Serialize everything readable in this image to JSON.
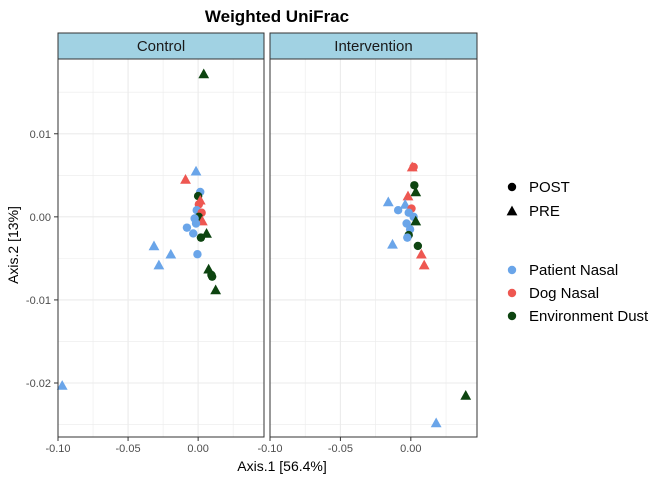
{
  "chart_data": {
    "type": "scatter",
    "title": "Weighted UniFrac",
    "xlabel": "Axis.1   [56.4%]",
    "ylabel": "Axis.2   [13%]",
    "xlim": [
      -0.1,
      0.047
    ],
    "ylim": [
      -0.0265,
      0.019
    ],
    "x_ticks": [
      -0.1,
      -0.05,
      0,
      0.05
    ],
    "x_tick_labels": [
      "-0.10",
      "-0.05",
      "0.00",
      "0.05"
    ],
    "y_ticks": [
      -0.02,
      -0.01,
      0,
      0.01
    ],
    "y_tick_labels": [
      "-0.02",
      "-0.01",
      "0.00",
      "0.01"
    ],
    "grid": true,
    "legend_position": "right",
    "panels": [
      {
        "name": "Control",
        "points": [
          {
            "x": 0.004,
            "y": 0.0172,
            "shape": "triangle",
            "group": "env"
          },
          {
            "x": -0.0015,
            "y": 0.0055,
            "shape": "triangle",
            "group": "patient"
          },
          {
            "x": -0.009,
            "y": 0.0045,
            "shape": "triangle",
            "group": "dog"
          },
          {
            "x": 0.0015,
            "y": 0.003,
            "shape": "circle",
            "group": "patient"
          },
          {
            "x": 0.0,
            "y": 0.0025,
            "shape": "circle",
            "group": "env"
          },
          {
            "x": 0.0015,
            "y": 0.002,
            "shape": "triangle",
            "group": "dog"
          },
          {
            "x": 0.0005,
            "y": 0.0015,
            "shape": "circle",
            "group": "dog"
          },
          {
            "x": -0.001,
            "y": 0.0008,
            "shape": "circle",
            "group": "patient"
          },
          {
            "x": 0.0025,
            "y": 0.0005,
            "shape": "circle",
            "group": "dog"
          },
          {
            "x": 0.0005,
            "y": 0.0,
            "shape": "circle",
            "group": "env"
          },
          {
            "x": -0.0025,
            "y": -0.0002,
            "shape": "circle",
            "group": "patient"
          },
          {
            "x": 0.003,
            "y": -0.0005,
            "shape": "triangle",
            "group": "dog"
          },
          {
            "x": -0.0015,
            "y": -0.0008,
            "shape": "circle",
            "group": "patient"
          },
          {
            "x": -0.008,
            "y": -0.0013,
            "shape": "circle",
            "group": "patient"
          },
          {
            "x": -0.0035,
            "y": -0.002,
            "shape": "circle",
            "group": "patient"
          },
          {
            "x": 0.006,
            "y": -0.002,
            "shape": "triangle",
            "group": "env"
          },
          {
            "x": 0.002,
            "y": -0.0025,
            "shape": "circle",
            "group": "env"
          },
          {
            "x": -0.0315,
            "y": -0.0035,
            "shape": "triangle",
            "group": "patient"
          },
          {
            "x": -0.0005,
            "y": -0.0045,
            "shape": "circle",
            "group": "patient"
          },
          {
            "x": -0.0195,
            "y": -0.0045,
            "shape": "triangle",
            "group": "patient"
          },
          {
            "x": -0.028,
            "y": -0.0058,
            "shape": "triangle",
            "group": "patient"
          },
          {
            "x": 0.0075,
            "y": -0.0063,
            "shape": "triangle",
            "group": "env"
          },
          {
            "x": 0.0095,
            "y": -0.007,
            "shape": "circle",
            "group": "env"
          },
          {
            "x": 0.01,
            "y": -0.0072,
            "shape": "circle",
            "group": "env"
          },
          {
            "x": 0.0125,
            "y": -0.0088,
            "shape": "triangle",
            "group": "env"
          },
          {
            "x": -0.097,
            "y": -0.0203,
            "shape": "triangle",
            "group": "patient"
          }
        ]
      },
      {
        "name": "Intervention",
        "points": [
          {
            "x": 0.001,
            "y": 0.006,
            "shape": "triangle",
            "group": "dog"
          },
          {
            "x": 0.002,
            "y": 0.006,
            "shape": "circle",
            "group": "dog"
          },
          {
            "x": 0.0025,
            "y": 0.0038,
            "shape": "circle",
            "group": "env"
          },
          {
            "x": 0.0035,
            "y": 0.003,
            "shape": "triangle",
            "group": "env"
          },
          {
            "x": -0.002,
            "y": 0.0025,
            "shape": "triangle",
            "group": "dog"
          },
          {
            "x": -0.016,
            "y": 0.0018,
            "shape": "triangle",
            "group": "patient"
          },
          {
            "x": -0.004,
            "y": 0.0015,
            "shape": "triangle",
            "group": "patient"
          },
          {
            "x": 0.0005,
            "y": 0.001,
            "shape": "circle",
            "group": "dog"
          },
          {
            "x": -0.009,
            "y": 0.0008,
            "shape": "circle",
            "group": "patient"
          },
          {
            "x": -0.0015,
            "y": 0.0005,
            "shape": "circle",
            "group": "patient"
          },
          {
            "x": 0.002,
            "y": 0.0,
            "shape": "circle",
            "group": "patient"
          },
          {
            "x": 0.0035,
            "y": -0.0005,
            "shape": "triangle",
            "group": "env"
          },
          {
            "x": -0.003,
            "y": -0.0008,
            "shape": "circle",
            "group": "patient"
          },
          {
            "x": -0.0005,
            "y": -0.0015,
            "shape": "circle",
            "group": "patient"
          },
          {
            "x": -0.0015,
            "y": -0.0022,
            "shape": "circle",
            "group": "env"
          },
          {
            "x": -0.0025,
            "y": -0.0025,
            "shape": "circle",
            "group": "patient"
          },
          {
            "x": -0.013,
            "y": -0.0033,
            "shape": "triangle",
            "group": "patient"
          },
          {
            "x": 0.005,
            "y": -0.0035,
            "shape": "circle",
            "group": "env"
          },
          {
            "x": 0.0075,
            "y": -0.0045,
            "shape": "triangle",
            "group": "dog"
          },
          {
            "x": 0.0095,
            "y": -0.0058,
            "shape": "triangle",
            "group": "dog"
          },
          {
            "x": 0.039,
            "y": -0.0215,
            "shape": "triangle",
            "group": "env"
          },
          {
            "x": 0.018,
            "y": -0.0248,
            "shape": "triangle",
            "group": "patient"
          }
        ]
      }
    ],
    "legend": {
      "shape": [
        {
          "label": "POST",
          "shape": "circle"
        },
        {
          "label": "PRE",
          "shape": "triangle"
        }
      ],
      "color": [
        {
          "label": "Patient Nasal",
          "key": "patient",
          "color": "#6aa5e9"
        },
        {
          "label": "Dog Nasal",
          "key": "dog",
          "color": "#ee5751"
        },
        {
          "label": "Environment Dust",
          "key": "env",
          "color": "#0d4410"
        }
      ]
    },
    "colors": {
      "strip_fill": "#a1d2e3",
      "strip_border": "#333333",
      "panel_border": "#333333",
      "grid": "#ebebeb"
    }
  }
}
